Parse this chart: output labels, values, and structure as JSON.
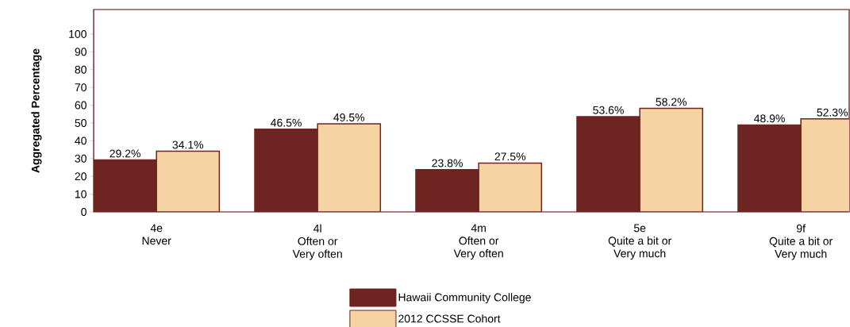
{
  "chart_data": {
    "type": "bar",
    "ylabel": "Aggregated Percentage",
    "categories": [
      "4e\nNever",
      "4l\nOften or\nVery often",
      "4m\nOften or\nVery often",
      "5e\nQuite a bit or\nVery much",
      "9f\nQuite a bit or\nVery much"
    ],
    "series": [
      {
        "name": "Hawaii Community College",
        "color": "#6e2420",
        "values": [
          29.2,
          46.5,
          23.8,
          53.6,
          48.9
        ],
        "value_labels": [
          "29.2%",
          "46.5%",
          "23.8%",
          "53.6%",
          "48.9%"
        ]
      },
      {
        "name": "2012 CCSSE Cohort",
        "color": "#f5d3a3",
        "values": [
          34.1,
          49.5,
          27.5,
          58.2,
          52.3
        ],
        "value_labels": [
          "34.1%",
          "49.5%",
          "27.5%",
          "58.2%",
          "52.3%"
        ]
      }
    ],
    "ylim": [
      0,
      113.8
    ],
    "yticks": [
      0,
      10,
      20,
      30,
      40,
      50,
      60,
      70,
      80,
      90,
      100
    ],
    "grid": false,
    "legend": "bottom"
  }
}
